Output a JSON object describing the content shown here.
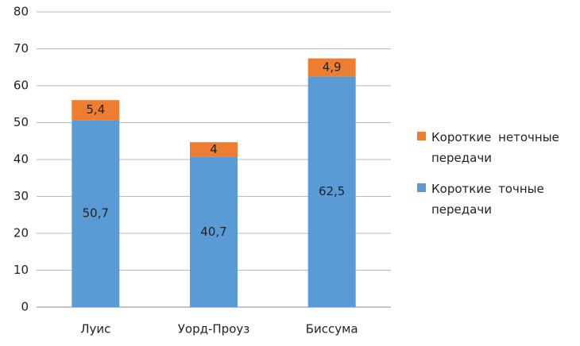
{
  "chart_data": {
    "type": "stacked-bar",
    "categories": [
      "Луис",
      "Уорд-Проуз",
      "Биссума"
    ],
    "series": [
      {
        "name": "Короткие точные передачи",
        "color": "#5b9bd5",
        "values": [
          50.7,
          40.7,
          62.5
        ],
        "value_labels": [
          "50,7",
          "40,7",
          "62,5"
        ]
      },
      {
        "name": "Короткие неточные передачи",
        "color": "#ed7d31",
        "values": [
          5.4,
          4,
          4.9
        ],
        "value_labels": [
          "5,4",
          "4",
          "4,9"
        ]
      }
    ],
    "ylim": [
      0,
      80
    ],
    "yticks": [
      0,
      10,
      20,
      30,
      40,
      50,
      60,
      70,
      80
    ],
    "grid": true,
    "legend_position": "right"
  }
}
